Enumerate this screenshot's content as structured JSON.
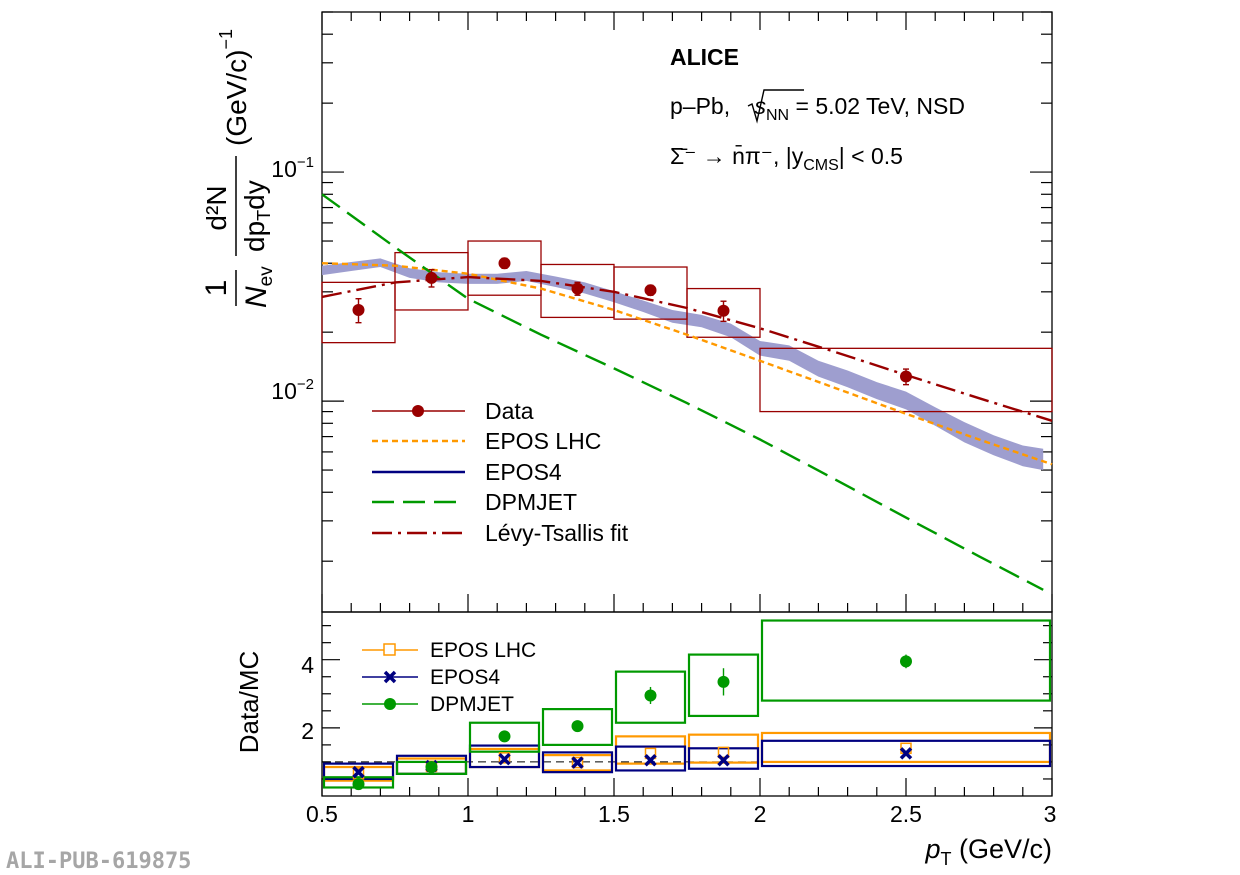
{
  "watermark": "ALI-PUB-619875",
  "annotations": {
    "experiment": "ALICE",
    "system_pre": "p–Pb, ",
    "system_s": "s",
    "system_nn": "NN",
    "system_post": " = 5.02 TeV, NSD",
    "decay": "Σ̄⁻ → n̄π⁻, |y",
    "decay_sub": "CMS",
    "decay_post": "| < 0.5"
  },
  "axes": {
    "y_top": {
      "one": "1",
      "nev": "N",
      "nev_sub": "ev",
      "num": "d²N",
      "den": "dp",
      "den_sub": "T",
      "den_post": "dy",
      "units": "(GeV/c)",
      "units_sup": "−1"
    },
    "y_bottom": "Data/MC",
    "x": {
      "p": "p",
      "sub": "T",
      "units": " (GeV/c)"
    },
    "x_ticks": [
      "0.5",
      "1",
      "1.5",
      "2",
      "2.5",
      "3"
    ],
    "y_top_ticks": [
      {
        "base": "10",
        "exp": "−1"
      },
      {
        "base": "10",
        "exp": "−2"
      }
    ],
    "y_bottom_ticks": [
      "2",
      "4"
    ]
  },
  "legend_top": [
    {
      "label": "Data",
      "color": "#990000"
    },
    {
      "label": "EPOS LHC",
      "color": "#ff9900"
    },
    {
      "label": "EPOS4",
      "color": "#000080"
    },
    {
      "label": "DPMJET",
      "color": "#009900"
    },
    {
      "label": "Lévy-Tsallis fit",
      "color": "#990000"
    }
  ],
  "legend_bottom": [
    {
      "label": "EPOS LHC",
      "color": "#ff9900"
    },
    {
      "label": "EPOS4",
      "color": "#000080"
    },
    {
      "label": "DPMJET",
      "color": "#009900"
    }
  ],
  "chart_data": [
    {
      "type": "scatter",
      "panel": "spectrum",
      "xlim": [
        0.5,
        3.0
      ],
      "ylim": [
        0.0012,
        0.5
      ],
      "log_y": true,
      "series": [
        {
          "name": "Data",
          "color": "#990000",
          "x": [
            0.625,
            0.875,
            1.125,
            1.375,
            1.625,
            1.875,
            2.5
          ],
          "xerr": [
            0.125,
            0.125,
            0.125,
            0.125,
            0.125,
            0.125,
            0.5
          ],
          "y": [
            0.025,
            0.0345,
            0.04,
            0.031,
            0.0305,
            0.0248,
            0.0128
          ],
          "stat_err": [
            0.003,
            0.003,
            0.002,
            0.002,
            0.0015,
            0.0025,
            0.001
          ],
          "syst_low": [
            0.018,
            0.025,
            0.029,
            0.0232,
            0.0228,
            0.019,
            0.009
          ],
          "syst_high": [
            0.033,
            0.0445,
            0.05,
            0.0395,
            0.0385,
            0.031,
            0.017
          ]
        },
        {
          "name": "EPOS LHC",
          "color": "#ff9900",
          "x": [
            0.5,
            0.75,
            1.0,
            1.25,
            1.5,
            1.75,
            2.0,
            2.25,
            2.5,
            2.75,
            3.0
          ],
          "y": [
            0.04,
            0.039,
            0.036,
            0.031,
            0.025,
            0.0195,
            0.015,
            0.0115,
            0.0088,
            0.0068,
            0.0053
          ]
        },
        {
          "name": "EPOS4",
          "color": "#9999cc",
          "x": [
            0.5,
            0.6,
            0.7,
            0.8,
            0.9,
            1.0,
            1.1,
            1.2,
            1.3,
            1.4,
            1.5,
            1.6,
            1.7,
            1.8,
            1.9,
            2.0,
            2.1,
            2.2,
            2.3,
            2.4,
            2.5,
            2.6,
            2.7,
            2.8,
            2.9,
            2.97
          ],
          "y_low": [
            0.0355,
            0.037,
            0.0385,
            0.0345,
            0.033,
            0.0325,
            0.0325,
            0.0335,
            0.0315,
            0.0295,
            0.027,
            0.0245,
            0.022,
            0.021,
            0.019,
            0.0158,
            0.015,
            0.0128,
            0.0115,
            0.0102,
            0.0092,
            0.0078,
            0.0066,
            0.0058,
            0.0052,
            0.005
          ],
          "y_high": [
            0.039,
            0.0405,
            0.042,
            0.038,
            0.0365,
            0.036,
            0.036,
            0.037,
            0.035,
            0.033,
            0.0302,
            0.0275,
            0.025,
            0.0238,
            0.0218,
            0.0183,
            0.0175,
            0.015,
            0.0136,
            0.0121,
            0.011,
            0.0094,
            0.0081,
            0.0071,
            0.0064,
            0.0062
          ]
        },
        {
          "name": "DPMJET",
          "color": "#009900",
          "x": [
            0.5,
            0.75,
            1.0,
            1.25,
            1.5,
            1.75,
            2.0,
            2.25,
            2.5,
            2.75,
            2.97
          ],
          "y": [
            0.08,
            0.047,
            0.028,
            0.0195,
            0.0139,
            0.0098,
            0.0068,
            0.0046,
            0.0031,
            0.0021,
            0.0015
          ]
        },
        {
          "name": "Lévy-Tsallis fit",
          "color": "#990000",
          "x": [
            0.5,
            0.75,
            1.0,
            1.25,
            1.5,
            1.75,
            2.0,
            2.25,
            2.5,
            2.75,
            3.0
          ],
          "y": [
            0.0285,
            0.033,
            0.0348,
            0.0335,
            0.03,
            0.0255,
            0.0208,
            0.0165,
            0.013,
            0.0103,
            0.0082
          ]
        }
      ]
    },
    {
      "type": "scatter",
      "panel": "ratio",
      "xlim": [
        0.5,
        3.0
      ],
      "ylim": [
        0,
        5.4
      ],
      "ylabel": "Data/MC",
      "series": [
        {
          "name": "EPOS LHC",
          "color": "#ff9900",
          "x": [
            0.625,
            0.875,
            1.125,
            1.375,
            1.625,
            1.875,
            2.5
          ],
          "xerr": [
            0.125,
            0.125,
            0.125,
            0.125,
            0.125,
            0.125,
            0.5
          ],
          "y": [
            0.65,
            0.87,
            1.12,
            0.98,
            1.25,
            1.28,
            1.4
          ],
          "syst_low": [
            0.45,
            0.65,
            0.85,
            0.75,
            0.95,
            0.98,
            1.0
          ],
          "syst_high": [
            0.85,
            1.1,
            1.38,
            1.2,
            1.75,
            1.8,
            1.85
          ]
        },
        {
          "name": "EPOS4",
          "color": "#000080",
          "x": [
            0.625,
            0.875,
            1.125,
            1.375,
            1.625,
            1.875,
            2.5
          ],
          "xerr": [
            0.125,
            0.125,
            0.125,
            0.125,
            0.125,
            0.125,
            0.5
          ],
          "y": [
            0.7,
            0.88,
            1.08,
            0.98,
            1.05,
            1.05,
            1.25
          ],
          "syst_low": [
            0.5,
            0.65,
            0.85,
            0.7,
            0.75,
            0.8,
            0.88
          ],
          "syst_high": [
            0.95,
            1.18,
            1.48,
            1.28,
            1.45,
            1.4,
            1.62
          ]
        },
        {
          "name": "DPMJET",
          "color": "#009900",
          "x": [
            0.625,
            0.875,
            1.125,
            1.375,
            1.625,
            1.875,
            2.5
          ],
          "xerr": [
            0.125,
            0.125,
            0.125,
            0.125,
            0.125,
            0.125,
            0.5
          ],
          "y": [
            0.35,
            0.85,
            1.75,
            2.05,
            2.95,
            3.35,
            3.95
          ],
          "stat_err": [
            0.05,
            0.08,
            0.15,
            0.12,
            0.25,
            0.4,
            0.2
          ],
          "syst_low": [
            0.25,
            0.65,
            1.3,
            1.5,
            2.15,
            2.35,
            2.8
          ],
          "syst_high": [
            0.55,
            1.0,
            2.15,
            2.55,
            3.65,
            4.15,
            5.15
          ]
        }
      ]
    }
  ]
}
